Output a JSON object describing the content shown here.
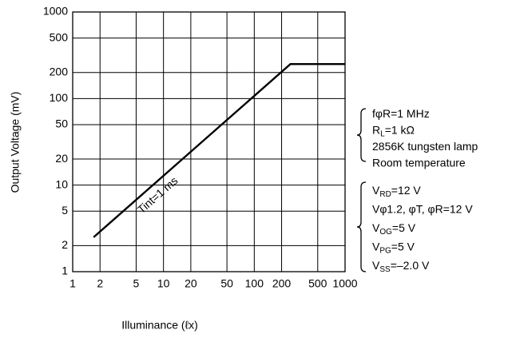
{
  "chart_data": {
    "type": "line",
    "x_label": "Illuminance (ℓx)",
    "y_label": "Output Voltage (mV)",
    "x": [
      1.7,
      250,
      1000
    ],
    "series": [
      {
        "color": "#000000",
        "values": [
          2.5,
          250,
          250
        ]
      }
    ],
    "xlim": [
      1,
      1000
    ],
    "ylim": [
      1,
      1000
    ],
    "xticks": [
      1,
      2,
      5,
      10,
      20,
      50,
      100,
      200,
      500,
      1000
    ],
    "yticks": [
      1,
      2,
      5,
      10,
      20,
      50,
      100,
      200,
      500,
      1000
    ],
    "xscale": "log",
    "yscale": "log",
    "grid": true,
    "line_annotation": "Tint=1 ms",
    "conditions_top": [
      [
        "fφR=1 MHz"
      ],
      [
        "R",
        "L",
        "=1 kΩ"
      ],
      [
        "2856K tungsten lamp"
      ],
      [
        "Room temperature"
      ]
    ],
    "conditions_bottom": [
      [
        "V",
        "RD",
        "=12 V"
      ],
      [
        "Vφ1.2, φT, φR=12 V"
      ],
      [
        "V",
        "OG",
        "=5 V"
      ],
      [
        "V",
        "PG",
        "=5 V"
      ],
      [
        "V",
        "SS",
        "=–2.0 V"
      ]
    ]
  }
}
